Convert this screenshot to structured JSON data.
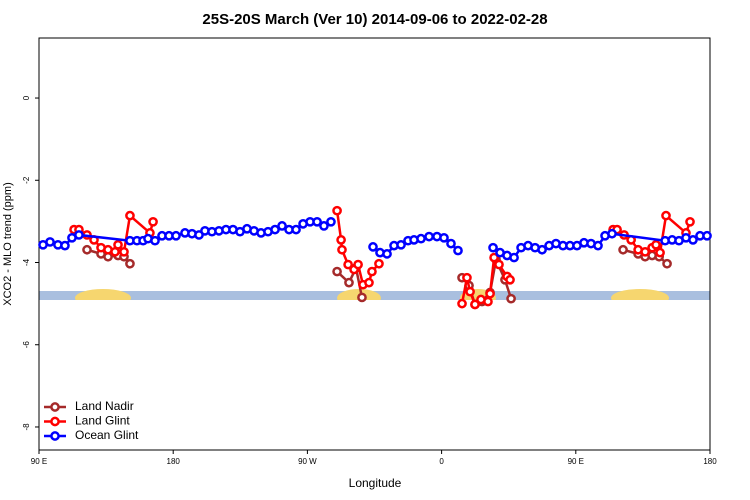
{
  "chart_data": {
    "type": "line",
    "title": "25S-20S March (Ver 10)   2014-09-06 to 2022-02-28",
    "x_label": "Longitude",
    "y_label": "XCO2 - MLO trend (ppm)",
    "xlim": [
      90,
      540
    ],
    "xticks": [
      {
        "value": 90,
        "label": "90 E"
      },
      180,
      {
        "value": 270,
        "label": "90 W"
      },
      {
        "value": 360,
        "label": "0"
      },
      {
        "value": 450,
        "label": "90 E"
      },
      {
        "value": 540,
        "label": "180"
      }
    ],
    "ylim": [
      -8.56,
      1.46
    ],
    "yticks": [
      0,
      -2,
      -4,
      -6,
      -8
    ],
    "legend": "bottom-left",
    "series": [
      {
        "name": "Land Nadir",
        "color": "#a52a2a",
        "x": [
          122.2,
          131.6,
          136.3,
          143.0,
          147.0,
          151.0,
          null,
          289.9,
          297.9,
          302.6,
          306.6,
          null,
          373.7,
          378.4,
          382.4,
          387.1,
          392.5,
          396.5,
          402.5,
          406.6,
          null,
          481.7,
          491.8,
          496.5,
          501.2,
          505.9,
          511.2
        ],
        "values": [
          -3.69,
          -3.79,
          -3.86,
          -3.83,
          -3.86,
          -4.03,
          null,
          -4.22,
          -4.49,
          -4.13,
          -4.85,
          null,
          -4.37,
          -4.56,
          -5.02,
          -4.95,
          -4.73,
          -3.93,
          -4.42,
          -4.88,
          null,
          -3.69,
          -3.79,
          -3.86,
          -3.83,
          -3.86,
          -4.03
        ]
      },
      {
        "name": "Land Glint",
        "color": "#ff0000",
        "x": [
          113.5,
          116.8,
          122.2,
          126.9,
          131.6,
          136.3,
          141.0,
          143.0,
          147.0,
          151.0,
          164.4,
          166.5,
          null,
          289.9,
          292.6,
          293.2,
          297.3,
          301.3,
          304.0,
          307.3,
          311.3,
          313.3,
          318.0,
          null,
          373.7,
          377.0,
          379.1,
          382.4,
          386.4,
          391.1,
          392.5,
          395.2,
          398.5,
          403.9,
          405.9,
          null,
          475.0,
          477.7,
          482.4,
          487.1,
          491.8,
          496.5,
          501.2,
          503.8,
          506.5,
          510.5,
          523.9,
          526.6
        ],
        "values": [
          -3.2,
          -3.2,
          -3.33,
          -3.45,
          -3.64,
          -3.69,
          -3.74,
          -3.57,
          -3.74,
          -2.86,
          -3.28,
          -3.01,
          null,
          -2.74,
          -3.45,
          -3.69,
          -4.05,
          -4.17,
          -4.05,
          -4.54,
          -4.49,
          -4.22,
          -4.03,
          null,
          -5.0,
          -4.37,
          -4.71,
          -5.02,
          -4.9,
          -4.95,
          -4.76,
          -3.88,
          -4.05,
          -4.34,
          -4.42,
          null,
          -3.2,
          -3.2,
          -3.33,
          -3.45,
          -3.69,
          -3.74,
          -3.64,
          -3.57,
          -3.76,
          -2.86,
          -3.28,
          -3.01
        ]
      },
      {
        "name": "Ocean Glint",
        "color": "#0000ff",
        "x": [
          92.7,
          97.4,
          102.7,
          107.4,
          112.1,
          116.8,
          151.0,
          155.7,
          159.8,
          163.1,
          167.8,
          172.5,
          177.2,
          181.9,
          187.9,
          192.6,
          197.3,
          201.3,
          206.0,
          210.7,
          215.4,
          220.1,
          224.8,
          229.5,
          234.2,
          238.9,
          243.6,
          248.3,
          253.0,
          257.7,
          262.4,
          267.1,
          271.8,
          276.5,
          281.1,
          285.8,
          null,
          314.0,
          318.7,
          323.4,
          328.1,
          332.8,
          337.5,
          341.5,
          346.2,
          351.6,
          356.9,
          361.6,
          366.3,
          371.0,
          null,
          394.5,
          399.2,
          403.9,
          408.6,
          413.3,
          418.0,
          422.7,
          427.4,
          432.1,
          436.7,
          441.4,
          446.1,
          450.8,
          455.5,
          460.2,
          464.9,
          469.6,
          474.3,
          509.9,
          514.6,
          519.2,
          523.9,
          528.6,
          533.3,
          538.0
        ],
        "values": [
          -3.57,
          -3.5,
          -3.57,
          -3.59,
          -3.4,
          -3.33,
          -3.47,
          -3.47,
          -3.47,
          -3.42,
          -3.47,
          -3.35,
          -3.35,
          -3.35,
          -3.28,
          -3.3,
          -3.33,
          -3.23,
          -3.25,
          -3.23,
          -3.2,
          -3.2,
          -3.25,
          -3.18,
          -3.23,
          -3.28,
          -3.25,
          -3.2,
          -3.11,
          -3.2,
          -3.2,
          -3.06,
          -3.01,
          -3.01,
          -3.11,
          -3.01,
          null,
          -3.62,
          -3.76,
          -3.79,
          -3.59,
          -3.57,
          -3.47,
          -3.45,
          -3.42,
          -3.37,
          -3.37,
          -3.4,
          -3.54,
          -3.71,
          null,
          -3.64,
          -3.76,
          -3.83,
          -3.88,
          -3.64,
          -3.59,
          -3.64,
          -3.69,
          -3.59,
          -3.54,
          -3.59,
          -3.59,
          -3.59,
          -3.52,
          -3.54,
          -3.59,
          -3.35,
          -3.3,
          -3.47,
          -3.45,
          -3.47,
          -3.4,
          -3.45,
          -3.35,
          -3.35
        ]
      }
    ]
  }
}
